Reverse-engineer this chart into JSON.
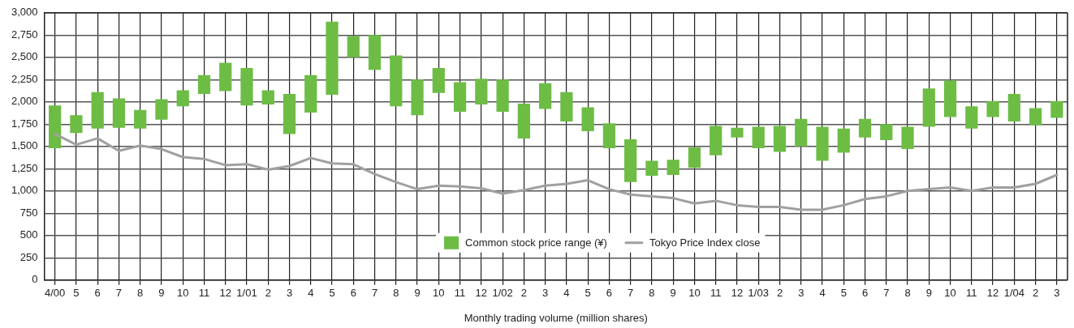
{
  "chart_data": {
    "type": "bar",
    "xlabel": "Monthly trading volume (million shares)",
    "categories": [
      "4/00",
      "5",
      "6",
      "7",
      "8",
      "9",
      "10",
      "11",
      "12",
      "1/01",
      "2",
      "3",
      "4",
      "5",
      "6",
      "7",
      "8",
      "9",
      "10",
      "11",
      "12",
      "1/02",
      "2",
      "3",
      "4",
      "5",
      "6",
      "7",
      "8",
      "9",
      "10",
      "11",
      "12",
      "1/03",
      "2",
      "3",
      "4",
      "5",
      "6",
      "7",
      "8",
      "9",
      "10",
      "11",
      "12",
      "1/04",
      "2",
      "3"
    ],
    "series": [
      {
        "name": "Common stock price range (¥)",
        "color": "#6dbd45",
        "base": [
          1480,
          1650,
          1700,
          1710,
          1700,
          1800,
          1950,
          2090,
          2120,
          1960,
          1970,
          1640,
          1880,
          2080,
          2500,
          2360,
          1950,
          1850,
          2100,
          1890,
          1970,
          1890,
          1590,
          1920,
          1780,
          1670,
          1480,
          1100,
          1170,
          1180,
          1260,
          1400,
          1600,
          1480,
          1440,
          1500,
          1340,
          1430,
          1600,
          1570,
          1470,
          1720,
          1830,
          1700,
          1830,
          1780,
          1740,
          1820
        ],
        "values": [
          480,
          200,
          410,
          330,
          210,
          230,
          180,
          210,
          320,
          420,
          160,
          450,
          420,
          820,
          240,
          390,
          570,
          400,
          280,
          330,
          290,
          360,
          390,
          290,
          330,
          270,
          280,
          480,
          170,
          170,
          230,
          330,
          110,
          240,
          290,
          310,
          380,
          270,
          210,
          180,
          250,
          430,
          410,
          250,
          180,
          310,
          190,
          190
        ]
      },
      {
        "name": "Tokyo Price Index close",
        "type": "line",
        "color": "#a0a0a0",
        "values": [
          1640,
          1520,
          1590,
          1450,
          1510,
          1470,
          1380,
          1360,
          1290,
          1300,
          1240,
          1280,
          1370,
          1310,
          1300,
          1190,
          1100,
          1020,
          1060,
          1050,
          1030,
          970,
          1010,
          1060,
          1080,
          1120,
          1020,
          960,
          940,
          920,
          860,
          890,
          840,
          820,
          820,
          790,
          790,
          840,
          910,
          940,
          1000,
          1020,
          1040,
          1000,
          1040,
          1040,
          1080,
          1180
        ]
      }
    ],
    "ylim": [
      0,
      3000
    ],
    "yticks": [
      {
        "value": 0,
        "label": "0"
      },
      {
        "value": 250,
        "label": "250"
      },
      {
        "value": 500,
        "label": "500"
      },
      {
        "value": 750,
        "label": "750"
      },
      {
        "value": 1000,
        "label": "1,000"
      },
      {
        "value": 1250,
        "label": "1,250"
      },
      {
        "value": 1500,
        "label": "1,500"
      },
      {
        "value": 1750,
        "label": "1,750"
      },
      {
        "value": 2000,
        "label": "2,000"
      },
      {
        "value": 2250,
        "label": "2,250"
      },
      {
        "value": 2500,
        "label": "2,500"
      },
      {
        "value": 2750,
        "label": "2,750"
      },
      {
        "value": 3000,
        "label": "3,000"
      }
    ],
    "grid": true,
    "legend": "bottom",
    "marker": "none",
    "line_style": "solid"
  }
}
